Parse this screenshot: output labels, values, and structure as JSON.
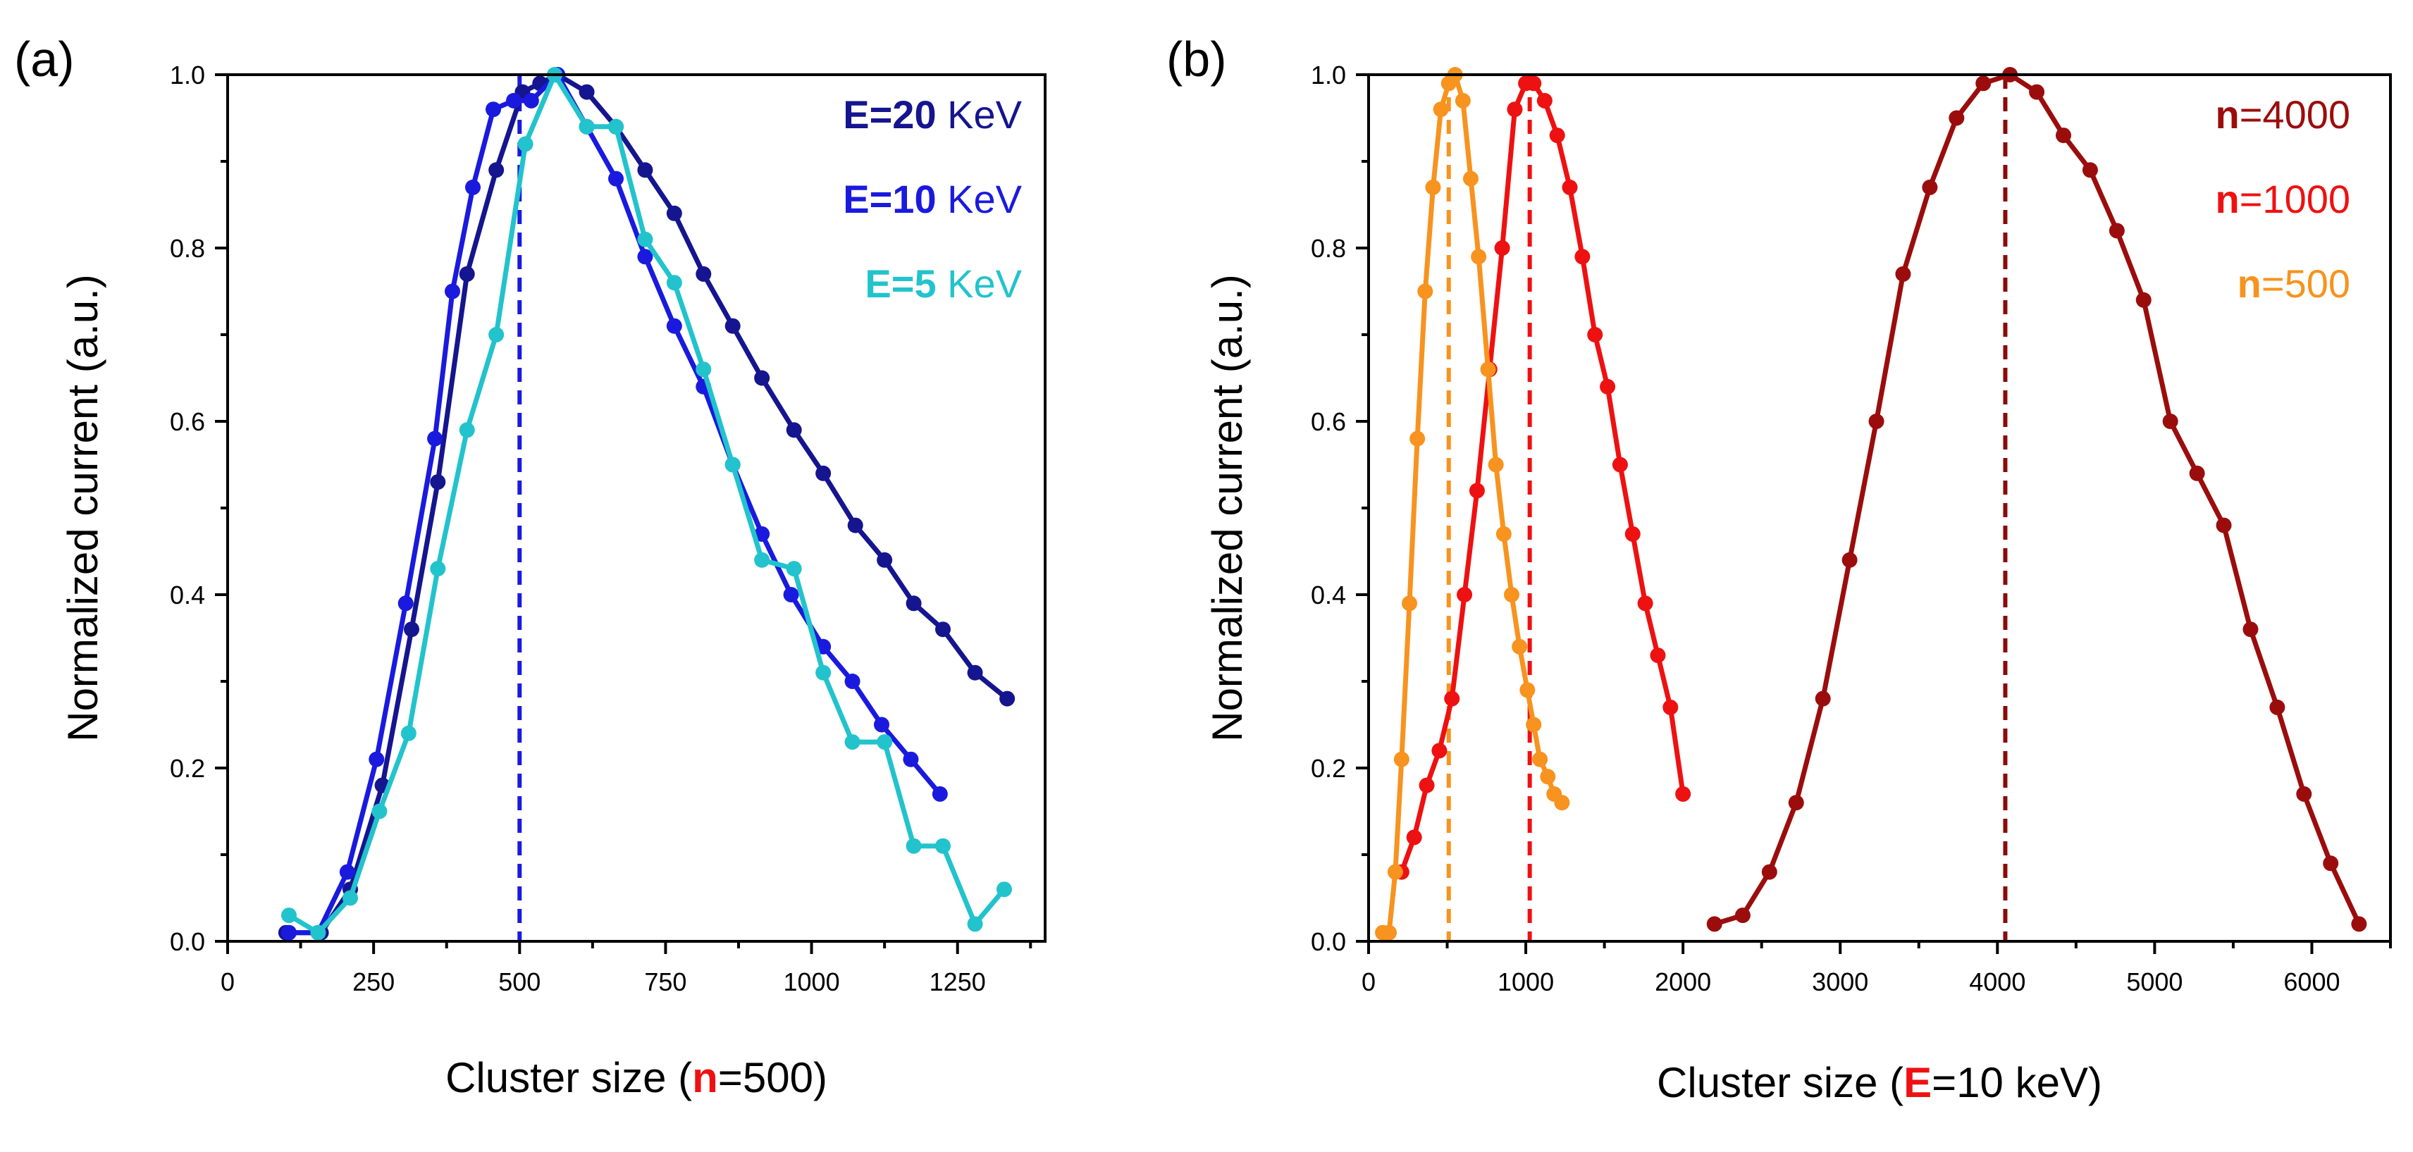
{
  "chart_data": [
    {
      "type": "line",
      "panel_label": "(a)",
      "xlabel": {
        "prefix": "Cluster size (",
        "emph": "n",
        "suffix": "=500)"
      },
      "ylabel": "Normalized current (a.u.)",
      "xlim": [
        0,
        1400
      ],
      "ylim": [
        0,
        1.0
      ],
      "xticks": [
        0,
        250,
        500,
        750,
        1000,
        1250
      ],
      "yticks": [
        0.0,
        0.2,
        0.4,
        0.6,
        0.8,
        1.0
      ],
      "legend_position": "top-right",
      "vlines": [
        {
          "x": 500,
          "color": "#1a1adf"
        }
      ],
      "series": [
        {
          "name": "E=20 KeV",
          "label_bold": "E=20",
          "label_rest": " KeV",
          "color": "#15158f",
          "x": [
            100,
            160,
            210,
            265,
            315,
            360,
            410,
            460,
            505,
            535,
            565,
            615,
            665,
            715,
            765,
            815,
            865,
            915,
            970,
            1020,
            1075,
            1125,
            1175,
            1225,
            1280,
            1335
          ],
          "y": [
            0.01,
            0.01,
            0.06,
            0.18,
            0.36,
            0.53,
            0.77,
            0.89,
            0.98,
            0.99,
            1.0,
            0.98,
            0.94,
            0.89,
            0.84,
            0.77,
            0.71,
            0.65,
            0.59,
            0.54,
            0.48,
            0.44,
            0.39,
            0.36,
            0.31,
            0.28
          ]
        },
        {
          "name": "E=10 KeV",
          "label_bold": "E=10",
          "label_rest": " KeV",
          "color": "#1a1adf",
          "x": [
            105,
            155,
            205,
            255,
            305,
            355,
            385,
            420,
            455,
            490,
            520,
            565,
            615,
            665,
            715,
            765,
            815,
            865,
            915,
            965,
            1020,
            1070,
            1120,
            1170,
            1220
          ],
          "y": [
            0.01,
            0.01,
            0.08,
            0.21,
            0.39,
            0.58,
            0.75,
            0.87,
            0.96,
            0.97,
            0.97,
            1.0,
            0.94,
            0.88,
            0.79,
            0.71,
            0.64,
            0.55,
            0.47,
            0.4,
            0.34,
            0.3,
            0.25,
            0.21,
            0.17
          ]
        },
        {
          "name": "E=5 KeV",
          "label_bold": "E=5",
          "label_rest": " KeV",
          "color": "#22c3cc",
          "x": [
            105,
            155,
            210,
            260,
            310,
            360,
            410,
            460,
            510,
            560,
            615,
            665,
            715,
            765,
            815,
            865,
            915,
            970,
            1020,
            1070,
            1125,
            1175,
            1225,
            1280,
            1330
          ],
          "y": [
            0.03,
            0.01,
            0.05,
            0.15,
            0.24,
            0.43,
            0.59,
            0.7,
            0.92,
            1.0,
            0.94,
            0.94,
            0.81,
            0.76,
            0.66,
            0.55,
            0.44,
            0.43,
            0.31,
            0.23,
            0.23,
            0.11,
            0.11,
            0.02,
            0.06
          ]
        }
      ]
    },
    {
      "type": "line",
      "panel_label": "(b)",
      "xlabel": {
        "prefix": "Cluster size  (",
        "emph": "E",
        "suffix": "=10 keV)"
      },
      "ylabel": "Normalized current (a.u.)",
      "xlim": [
        0,
        6500
      ],
      "ylim": [
        0,
        1.0
      ],
      "xticks": [
        0,
        1000,
        2000,
        3000,
        4000,
        5000,
        6000
      ],
      "yticks": [
        0.0,
        0.2,
        0.4,
        0.6,
        0.8,
        1.0
      ],
      "legend_position": "top-right",
      "vlines": [
        {
          "x": 4050,
          "color": "#8b0a0a"
        },
        {
          "x": 1025,
          "color": "#ee1111"
        },
        {
          "x": 510,
          "color": "#f7931e"
        }
      ],
      "series": [
        {
          "name": "n=4000",
          "label_bold": "n",
          "label_rest": "=4000",
          "color": "#9b0d0d",
          "x": [
            2200,
            2380,
            2550,
            2720,
            2890,
            3060,
            3230,
            3400,
            3570,
            3740,
            3910,
            4080,
            4250,
            4420,
            4590,
            4760,
            4930,
            5100,
            5270,
            5440,
            5610,
            5780,
            5950,
            6120,
            6300
          ],
          "y": [
            0.02,
            0.03,
            0.08,
            0.16,
            0.28,
            0.44,
            0.6,
            0.77,
            0.87,
            0.95,
            0.99,
            1.0,
            0.98,
            0.93,
            0.89,
            0.82,
            0.74,
            0.6,
            0.54,
            0.48,
            0.36,
            0.27,
            0.17,
            0.09,
            0.02
          ]
        },
        {
          "name": "n=1000",
          "label_bold": "n",
          "label_rest": "=1000",
          "color": "#ee1111",
          "x": [
            210,
            290,
            370,
            450,
            530,
            610,
            690,
            770,
            850,
            930,
            1000,
            1050,
            1120,
            1200,
            1280,
            1360,
            1440,
            1520,
            1600,
            1680,
            1760,
            1840,
            1920,
            2000
          ],
          "y": [
            0.08,
            0.12,
            0.18,
            0.22,
            0.28,
            0.4,
            0.52,
            0.66,
            0.8,
            0.96,
            0.99,
            0.99,
            0.97,
            0.93,
            0.87,
            0.79,
            0.7,
            0.64,
            0.55,
            0.47,
            0.39,
            0.33,
            0.27,
            0.17
          ]
        },
        {
          "name": "n=500",
          "label_bold": "n",
          "label_rest": "=500",
          "color": "#f7931e",
          "x": [
            90,
            130,
            170,
            210,
            260,
            310,
            360,
            410,
            460,
            510,
            550,
            600,
            650,
            700,
            760,
            810,
            860,
            910,
            960,
            1010,
            1050,
            1090,
            1140,
            1180,
            1230
          ],
          "y": [
            0.01,
            0.01,
            0.08,
            0.21,
            0.39,
            0.58,
            0.75,
            0.87,
            0.96,
            0.99,
            1.0,
            0.97,
            0.88,
            0.79,
            0.66,
            0.55,
            0.47,
            0.4,
            0.34,
            0.29,
            0.25,
            0.21,
            0.19,
            0.17,
            0.16
          ]
        }
      ]
    }
  ]
}
